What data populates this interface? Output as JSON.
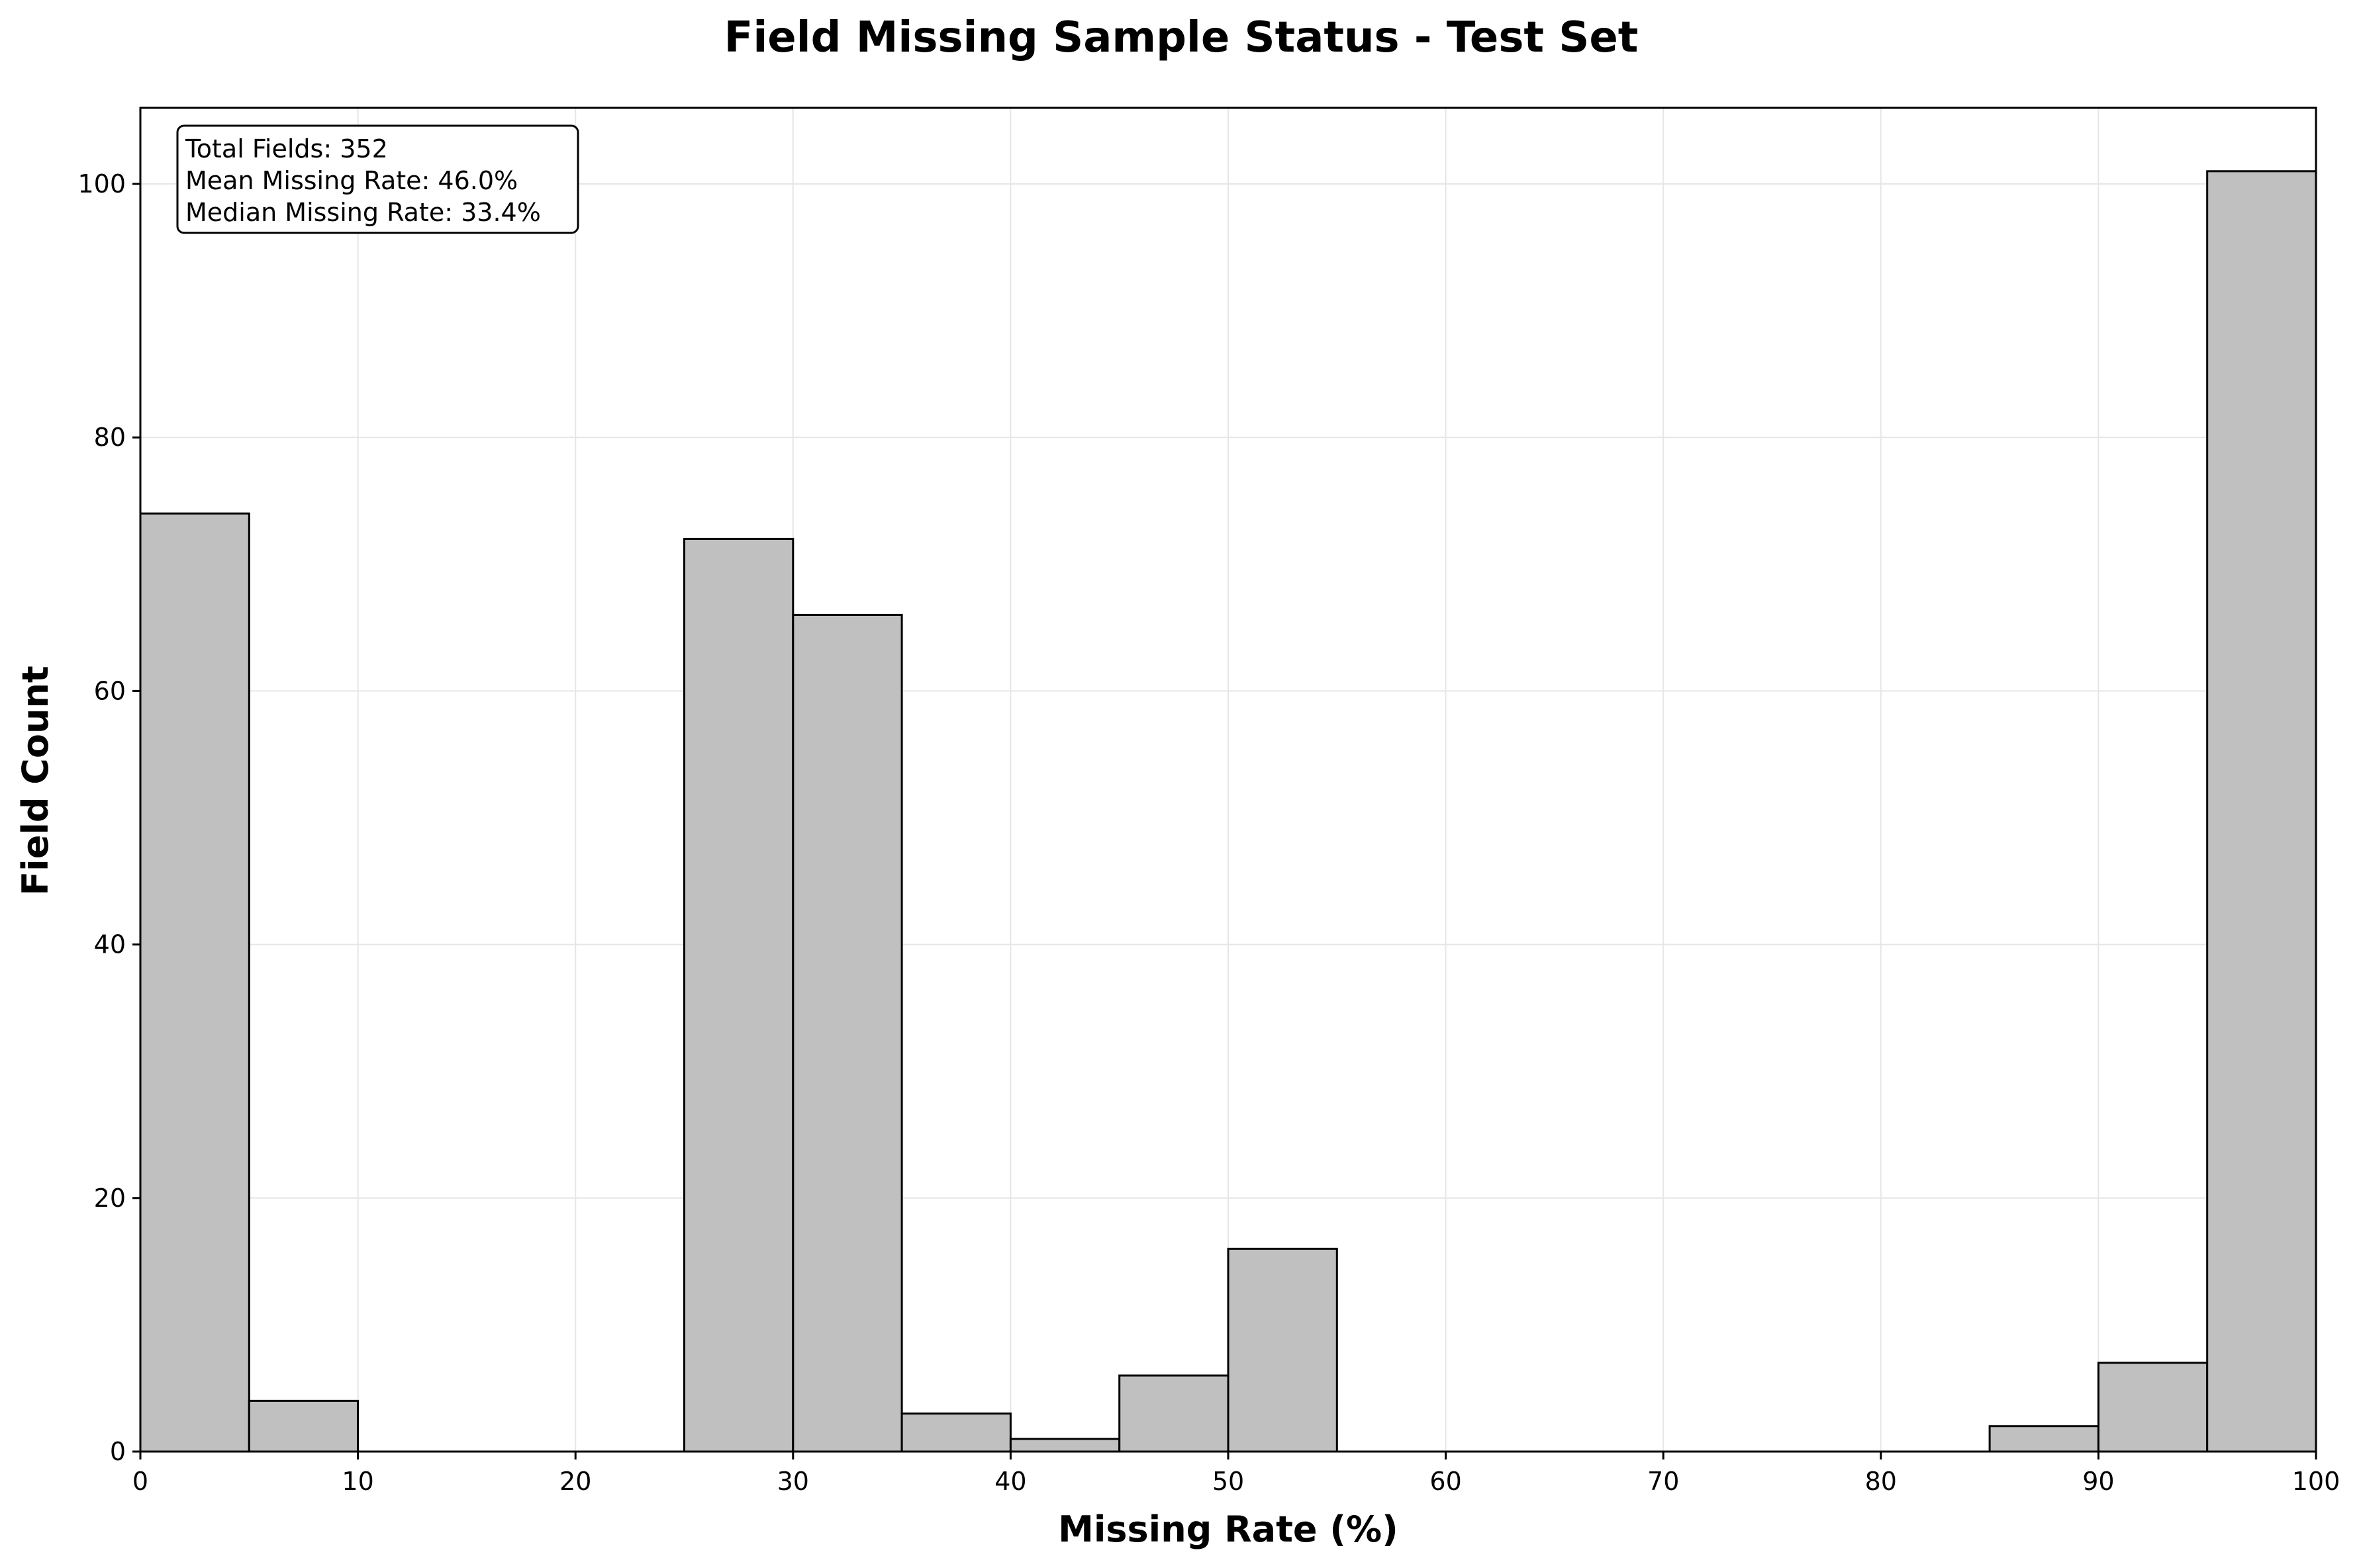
{
  "chart_data": {
    "type": "bar",
    "title": "Field Missing Sample Status - Test Set",
    "xlabel": "Missing Rate (%)",
    "ylabel": "Field Count",
    "xlim": [
      0,
      100
    ],
    "ylim": [
      0,
      106
    ],
    "grid": true,
    "bin_width": 5,
    "bins": [
      {
        "start": 0,
        "end": 5,
        "count": 74
      },
      {
        "start": 5,
        "end": 10,
        "count": 4
      },
      {
        "start": 10,
        "end": 15,
        "count": 0
      },
      {
        "start": 15,
        "end": 20,
        "count": 0
      },
      {
        "start": 20,
        "end": 25,
        "count": 0
      },
      {
        "start": 25,
        "end": 30,
        "count": 72
      },
      {
        "start": 30,
        "end": 35,
        "count": 66
      },
      {
        "start": 35,
        "end": 40,
        "count": 3
      },
      {
        "start": 40,
        "end": 45,
        "count": 1
      },
      {
        "start": 45,
        "end": 50,
        "count": 6
      },
      {
        "start": 50,
        "end": 55,
        "count": 16
      },
      {
        "start": 55,
        "end": 60,
        "count": 0
      },
      {
        "start": 60,
        "end": 65,
        "count": 0
      },
      {
        "start": 65,
        "end": 70,
        "count": 0
      },
      {
        "start": 70,
        "end": 75,
        "count": 0
      },
      {
        "start": 75,
        "end": 80,
        "count": 0
      },
      {
        "start": 80,
        "end": 85,
        "count": 0
      },
      {
        "start": 85,
        "end": 90,
        "count": 2
      },
      {
        "start": 90,
        "end": 95,
        "count": 7
      },
      {
        "start": 95,
        "end": 100,
        "count": 101
      }
    ],
    "x_ticks": [
      0,
      10,
      20,
      30,
      40,
      50,
      60,
      70,
      80,
      90,
      100
    ],
    "y_ticks": [
      0,
      20,
      40,
      60,
      80,
      100
    ],
    "bar_color": "#c0c0c0",
    "edge_color": "#000000",
    "annotation": {
      "lines": [
        "Total Fields: 352",
        "Mean Missing Rate: 46.0%",
        "Median Missing Rate: 33.4%"
      ],
      "location": "top-left"
    }
  }
}
